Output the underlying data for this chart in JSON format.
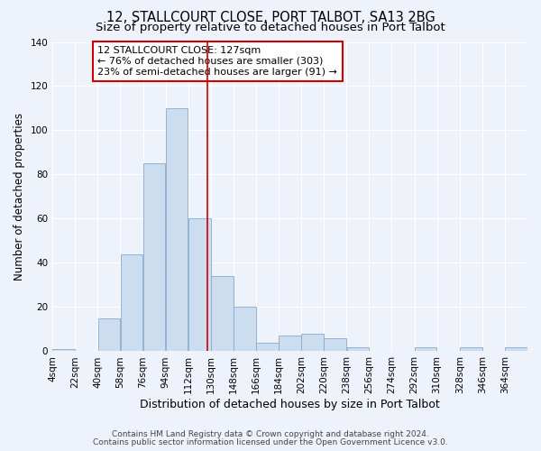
{
  "title": "12, STALLCOURT CLOSE, PORT TALBOT, SA13 2BG",
  "subtitle": "Size of property relative to detached houses in Port Talbot",
  "xlabel": "Distribution of detached houses by size in Port Talbot",
  "ylabel": "Number of detached properties",
  "bin_labels": [
    "4sqm",
    "22sqm",
    "40sqm",
    "58sqm",
    "76sqm",
    "94sqm",
    "112sqm",
    "130sqm",
    "148sqm",
    "166sqm",
    "184sqm",
    "202sqm",
    "220sqm",
    "238sqm",
    "256sqm",
    "274sqm",
    "292sqm",
    "310sqm",
    "328sqm",
    "346sqm",
    "364sqm"
  ],
  "bin_edges": [
    4,
    22,
    40,
    58,
    76,
    94,
    112,
    130,
    148,
    166,
    184,
    202,
    220,
    238,
    256,
    274,
    292,
    310,
    328,
    346,
    364,
    382
  ],
  "counts": [
    1,
    0,
    15,
    44,
    85,
    110,
    60,
    34,
    20,
    4,
    7,
    8,
    6,
    2,
    0,
    0,
    2,
    0,
    2,
    0,
    2
  ],
  "bar_fill": "#ccddf0",
  "bar_edge": "#88aacc",
  "vline_x": 127,
  "vline_color": "#cc0000",
  "annotation_line1": "12 STALLCOURT CLOSE: 127sqm",
  "annotation_line2": "← 76% of detached houses are smaller (303)",
  "annotation_line3": "23% of semi-detached houses are larger (91) →",
  "annotation_box_color": "#cc0000",
  "ylim": [
    0,
    140
  ],
  "yticks": [
    0,
    20,
    40,
    60,
    80,
    100,
    120,
    140
  ],
  "footer1": "Contains HM Land Registry data © Crown copyright and database right 2024.",
  "footer2": "Contains public sector information licensed under the Open Government Licence v3.0.",
  "background_color": "#eef2fb",
  "grid_color": "#ffffff",
  "title_fontsize": 10.5,
  "subtitle_fontsize": 9.5,
  "xlabel_fontsize": 9,
  "ylabel_fontsize": 8.5,
  "tick_fontsize": 7.5,
  "footer_fontsize": 6.5,
  "ann_fontsize": 8
}
